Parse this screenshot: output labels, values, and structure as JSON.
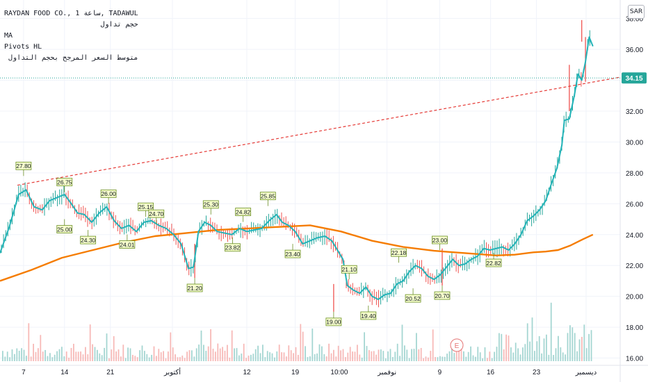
{
  "legend": {
    "symbol_line": "RAYDAN FOOD CO., 1 ساعة, TADAWUL",
    "volume_label": "حجم تداول",
    "ma_label": "MA",
    "pivots_label": "Pivots HL",
    "vwma_label": "متوسط السعر المرجح بحجم التداول"
  },
  "currency_button": "SAR",
  "event_marker": "E",
  "colors": {
    "price_line": "#22b3b8",
    "candle_up": "#26a69a",
    "candle_down": "#ef5350",
    "ma_line": "#f57c00",
    "trendline": "#e53935",
    "pivot_label_bg": "#f6ffcc",
    "pivot_label_border": "#6b8e23",
    "current_price_bg": "#26a69a",
    "volume_up": "#a5d6d2",
    "volume_down": "#f7b9b7"
  },
  "chart_data": {
    "type": "line",
    "ylim": [
      15.8,
      39.2
    ],
    "xlim": [
      0,
      100
    ],
    "y_ticks": [
      "16.00",
      "18.00",
      "20.00",
      "22.00",
      "24.00",
      "26.00",
      "28.00",
      "30.00",
      "32.00",
      "34.00",
      "36.00",
      "38.00"
    ],
    "x_ticks": [
      {
        "x": 3.8,
        "label": "7"
      },
      {
        "x": 10.4,
        "label": "14"
      },
      {
        "x": 17.8,
        "label": "21"
      },
      {
        "x": 27.8,
        "label": "أكتوبر"
      },
      {
        "x": 39.8,
        "label": "12"
      },
      {
        "x": 47.6,
        "label": "19"
      },
      {
        "x": 54.7,
        "label": "10:00"
      },
      {
        "x": 62.4,
        "label": "نوفمبر"
      },
      {
        "x": 70.9,
        "label": "9"
      },
      {
        "x": 79.1,
        "label": "16"
      },
      {
        "x": 86.5,
        "label": "23"
      },
      {
        "x": 94.5,
        "label": "ديسمبر"
      }
    ],
    "current_price": "34.15",
    "price_series": {
      "name": "RAYDAN FOOD CO.",
      "x": [
        0,
        1.5,
        3,
        4.2,
        5.5,
        6.8,
        8,
        9.2,
        10.4,
        11.5,
        12.5,
        13.6,
        14.8,
        16,
        17.2,
        18.4,
        19.6,
        20.8,
        22,
        23.2,
        24.4,
        25.6,
        26.8,
        28,
        29.2,
        30.4,
        31.2,
        32,
        33,
        34,
        35,
        36.2,
        37.4,
        38.6,
        39.8,
        41,
        42.2,
        43.4,
        44.6,
        45.5,
        46.5,
        47.6,
        48.8,
        50,
        51.2,
        52.4,
        53.5,
        54.4,
        55.3,
        56,
        57,
        58,
        59,
        60,
        61,
        62,
        63,
        64,
        65,
        66,
        67,
        68,
        69,
        70,
        71,
        72,
        73,
        74,
        75,
        76,
        77,
        78,
        79,
        80,
        81,
        82,
        83,
        84,
        85,
        86,
        87,
        88,
        89,
        89.8,
        90.6,
        91,
        91.8,
        92.6,
        93.2,
        93.8,
        94.4,
        95,
        95.6
      ],
      "values": [
        22.8,
        24.5,
        26.6,
        26.9,
        25.8,
        25.6,
        26.2,
        26.4,
        26.6,
        26.0,
        25.4,
        25.3,
        24.8,
        25.4,
        25.8,
        24.9,
        24.4,
        24.6,
        24.2,
        24.8,
        24.9,
        24.6,
        24.4,
        24.0,
        23.4,
        21.8,
        21.9,
        24.2,
        24.8,
        24.6,
        24.2,
        24.1,
        24.0,
        24.4,
        24.2,
        24.3,
        24.4,
        24.9,
        25.3,
        24.8,
        24.6,
        24.2,
        23.4,
        23.6,
        23.8,
        23.9,
        23.6,
        23.0,
        22.4,
        20.7,
        20.4,
        20.2,
        20.6,
        20.0,
        19.8,
        20.1,
        20.2,
        20.8,
        21.0,
        21.6,
        22.0,
        21.8,
        21.3,
        21.1,
        21.4,
        21.9,
        22.4,
        22.0,
        22.1,
        22.4,
        22.6,
        23.1,
        23.0,
        23.1,
        23.2,
        23.0,
        23.4,
        24.0,
        24.9,
        25.2,
        25.6,
        26.2,
        27.4,
        28.3,
        29.8,
        31.4,
        31.5,
        33.0,
        34.4,
        34.0,
        35.2,
        36.8,
        36.2
      ]
    },
    "ma_series": {
      "name": "MA",
      "x": [
        0,
        5,
        10,
        15,
        20,
        25,
        30,
        35,
        40,
        45,
        50,
        55,
        60,
        65,
        70,
        75,
        80,
        83,
        86,
        88,
        90,
        92,
        94,
        95.6
      ],
      "values": [
        21.0,
        21.7,
        22.5,
        23.0,
        23.5,
        23.9,
        24.1,
        24.3,
        24.4,
        24.5,
        24.6,
        24.2,
        23.6,
        23.2,
        22.95,
        22.8,
        22.65,
        22.7,
        22.85,
        22.9,
        23.0,
        23.3,
        23.7,
        24.0
      ]
    },
    "trendline": {
      "name": "",
      "x": [
        2.8,
        100
      ],
      "values": [
        27.2,
        34.2
      ]
    },
    "pivots": [
      {
        "x": 3.8,
        "y": 27.8,
        "label": "27.80",
        "pos": "above"
      },
      {
        "x": 10.4,
        "y": 26.75,
        "label": "26.75",
        "pos": "above"
      },
      {
        "x": 10.4,
        "y": 25.0,
        "label": "25.00",
        "pos": "below"
      },
      {
        "x": 14.2,
        "y": 24.3,
        "label": "24.30",
        "pos": "below"
      },
      {
        "x": 17.5,
        "y": 26.0,
        "label": "26.00",
        "pos": "above"
      },
      {
        "x": 20.5,
        "y": 24.01,
        "label": "24.01",
        "pos": "below"
      },
      {
        "x": 23.5,
        "y": 25.15,
        "label": "25.15",
        "pos": "above"
      },
      {
        "x": 25.2,
        "y": 24.7,
        "label": "24.70",
        "pos": "above"
      },
      {
        "x": 31.4,
        "y": 21.2,
        "label": "21.20",
        "pos": "below"
      },
      {
        "x": 34.0,
        "y": 25.3,
        "label": "25.30",
        "pos": "above"
      },
      {
        "x": 37.5,
        "y": 23.82,
        "label": "23.82",
        "pos": "below"
      },
      {
        "x": 39.2,
        "y": 24.82,
        "label": "24.82",
        "pos": "above"
      },
      {
        "x": 43.2,
        "y": 25.85,
        "label": "25.85",
        "pos": "above"
      },
      {
        "x": 47.2,
        "y": 23.4,
        "label": "23.40",
        "pos": "below"
      },
      {
        "x": 53.8,
        "y": 19.0,
        "label": "19.00",
        "pos": "below"
      },
      {
        "x": 56.3,
        "y": 21.1,
        "label": "21.10",
        "pos": "above"
      },
      {
        "x": 59.4,
        "y": 19.4,
        "label": "19.40",
        "pos": "below"
      },
      {
        "x": 64.3,
        "y": 22.18,
        "label": "22.18",
        "pos": "above"
      },
      {
        "x": 66.6,
        "y": 20.52,
        "label": "20.52",
        "pos": "below"
      },
      {
        "x": 70.9,
        "y": 23.0,
        "label": "23.00",
        "pos": "above"
      },
      {
        "x": 71.3,
        "y": 20.7,
        "label": "20.70",
        "pos": "below"
      },
      {
        "x": 79.6,
        "y": 22.82,
        "label": "22.82",
        "pos": "below"
      }
    ]
  }
}
